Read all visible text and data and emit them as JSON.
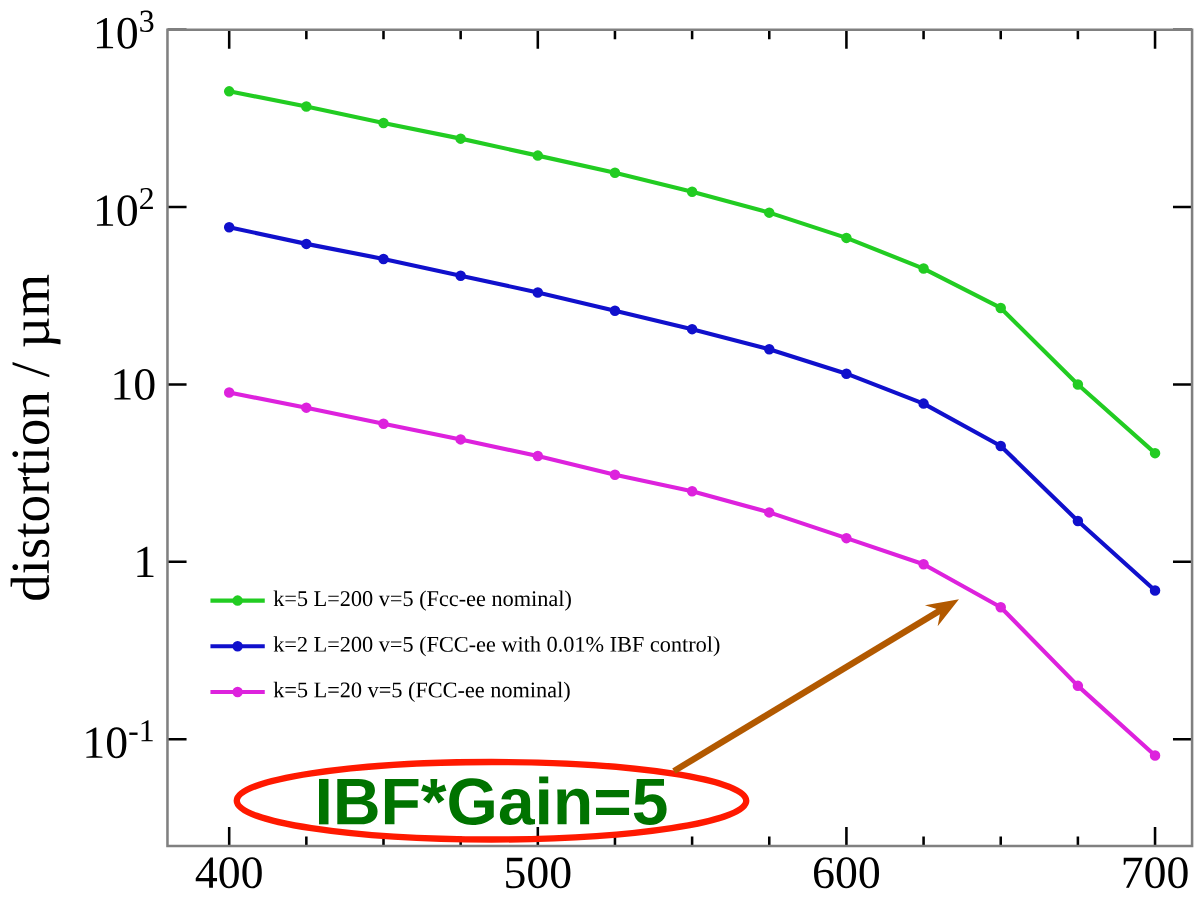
{
  "chart_data": {
    "type": "line",
    "ylabel": "distortion / µm",
    "log": "y",
    "marker": "circle",
    "line_style": "solid",
    "legend": "bottom left",
    "grid": false,
    "x": [
      400,
      425,
      450,
      475,
      500,
      525,
      550,
      575,
      600,
      625,
      650,
      675,
      700
    ],
    "xlim": [
      380,
      712
    ],
    "xticks": [
      400,
      500,
      600,
      700
    ],
    "ylim": [
      0.025,
      1000
    ],
    "yticks": [
      {
        "value": 1000,
        "label": "10$^{3}$"
      },
      {
        "value": 100,
        "label": "10$^{2}$"
      },
      {
        "value": 10,
        "label": "10"
      },
      {
        "value": 1,
        "label": "1"
      },
      {
        "value": 0.1,
        "label": "10$^{-1}$"
      }
    ],
    "series": [
      {
        "name": "k=5 L=200 v=5 (Fcc-ee nominal)",
        "color": "#22cc22",
        "values": [
          449,
          369,
          298,
          243,
          195,
          156,
          122,
          93,
          67,
          45,
          27,
          10,
          4.1
        ]
      },
      {
        "name": "k=2 L=200 v=5 (FCC-ee with 0.01% IBF control)",
        "color": "#1010cc",
        "values": [
          77,
          62,
          51,
          41,
          33,
          26,
          20.5,
          15.8,
          11.5,
          7.8,
          4.5,
          1.7,
          0.69
        ]
      },
      {
        "name": "k=5 L=20 v=5 (FCC-ee nominal)",
        "color": "#dd22dd",
        "values": [
          9.0,
          7.4,
          6.0,
          4.9,
          3.95,
          3.1,
          2.5,
          1.9,
          1.36,
          0.97,
          0.555,
          0.2,
          0.081
        ]
      }
    ],
    "annotations": [
      "IBF*Gain=5"
    ]
  }
}
